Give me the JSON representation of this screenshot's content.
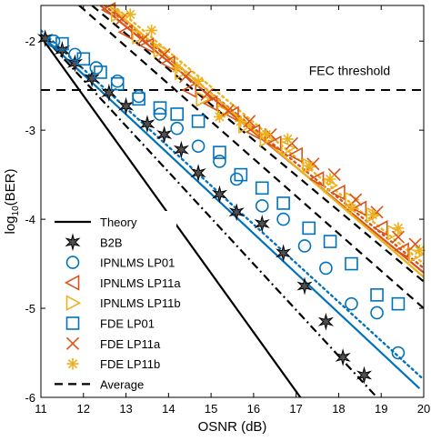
{
  "chart_data": {
    "type": "line",
    "xlabel": "OSNR   (dB)",
    "ylabel": "log",
    "ylabel_sub": "10",
    "ylabel_tail": "(BER)",
    "xlim": [
      11,
      20
    ],
    "ylim": [
      -6,
      -1.6
    ],
    "xticks": [
      11,
      12,
      13,
      14,
      15,
      16,
      17,
      18,
      19,
      20
    ],
    "xtick_labels": [
      "11",
      "12",
      "13",
      "14",
      "15",
      "16",
      "17",
      "18",
      "19",
      "20"
    ],
    "yticks": [
      -6,
      -5,
      -4,
      -3,
      -2
    ],
    "ytick_labels": [
      "-6",
      "-5",
      "-4",
      "-3",
      "-2"
    ],
    "grid": false,
    "legend_position": "bottom-left",
    "annotations": [
      {
        "text": "FEC threshold",
        "x": 17.3,
        "y": -2.38
      }
    ],
    "threshold": {
      "y": -2.55,
      "style": "dashed"
    },
    "lines": [
      {
        "name": "Theory",
        "color": "#000000",
        "dash": "solid",
        "x": [
          11,
          17.1
        ],
        "y": [
          -1.95,
          -6.0
        ]
      },
      {
        "name": "B2B fit",
        "color": "#000000",
        "dash": "dashdot",
        "x": [
          11,
          18.9
        ],
        "y": [
          -1.92,
          -6.0
        ]
      },
      {
        "name": "IPNLMS LP01 fit",
        "color": "#0072BD",
        "dash": "solid",
        "x": [
          11,
          19.9
        ],
        "y": [
          -1.93,
          -5.9
        ]
      },
      {
        "name": "FDE LP01 fit",
        "color": "#0072BD",
        "dash": "dotted",
        "x": [
          11,
          20
        ],
        "y": [
          -1.88,
          -5.8
        ]
      },
      {
        "name": "IPNLMS LP11a fit",
        "color": "#D95319",
        "dash": "solid",
        "x": [
          12.4,
          20
        ],
        "y": [
          -1.6,
          -4.6
        ]
      },
      {
        "name": "FDE LP11a fit",
        "color": "#D95319",
        "dash": "dotted",
        "x": [
          12.5,
          20
        ],
        "y": [
          -1.6,
          -4.55
        ]
      },
      {
        "name": "IPNLMS LP11b fit",
        "color": "#EDB120",
        "dash": "solid",
        "x": [
          12.6,
          20
        ],
        "y": [
          -1.6,
          -4.65
        ]
      },
      {
        "name": "FDE LP11b fit",
        "color": "#EDB120",
        "dash": "dotted",
        "x": [
          12.7,
          20
        ],
        "y": [
          -1.6,
          -4.5
        ]
      },
      {
        "name": "Average",
        "color": "#000000",
        "dash": "dashed",
        "x": [
          11.9,
          20
        ],
        "y": [
          -1.6,
          -5.0
        ]
      },
      {
        "name": "Average upper",
        "color": "#000000",
        "dash": "dashed",
        "x": [
          12.2,
          20
        ],
        "y": [
          -1.6,
          -4.7
        ]
      }
    ],
    "series": [
      {
        "name": "B2B",
        "marker": "star6",
        "color": "#000000",
        "fill": "#505050",
        "x": [
          11.1,
          11.5,
          11.8,
          12.2,
          12.6,
          13.0,
          13.5,
          13.9,
          14.3,
          14.7,
          15.2,
          15.6,
          16.2,
          16.7,
          17.2,
          17.7,
          18.1,
          18.6
        ],
        "y": [
          -1.97,
          -2.1,
          -2.25,
          -2.42,
          -2.58,
          -2.73,
          -2.93,
          -3.05,
          -3.22,
          -3.48,
          -3.72,
          -3.92,
          -4.05,
          -4.38,
          -4.75,
          -5.15,
          -5.55,
          -5.75
        ]
      },
      {
        "name": "IPNLMS LP01",
        "marker": "circle",
        "color": "#0072BD",
        "x": [
          11.3,
          11.8,
          12.3,
          12.8,
          13.3,
          13.8,
          14.2,
          14.7,
          15.2,
          15.6,
          16.2,
          16.7,
          17.2,
          17.7,
          18.3,
          18.9,
          19.4
        ],
        "y": [
          -2.0,
          -2.15,
          -2.3,
          -2.45,
          -2.62,
          -2.82,
          -2.98,
          -3.18,
          -3.35,
          -3.55,
          -3.85,
          -4.0,
          -4.3,
          -4.55,
          -4.95,
          -5.05,
          -5.5
        ]
      },
      {
        "name": "IPNLMS LP11a",
        "marker": "triangle-left",
        "color": "#D95319",
        "x": [
          12.6,
          13.0,
          13.5,
          14.0,
          14.5,
          15.0,
          15.5,
          16.0,
          16.5,
          17.0,
          17.5,
          18.0,
          18.5,
          19.0,
          19.5
        ],
        "y": [
          -1.65,
          -1.9,
          -2.05,
          -2.25,
          -2.55,
          -2.7,
          -2.82,
          -3.02,
          -3.15,
          -3.28,
          -3.55,
          -3.7,
          -3.88,
          -4.1,
          -4.35
        ]
      },
      {
        "name": "IPNLMS LP11b",
        "marker": "triangle-right",
        "color": "#EDB120",
        "x": [
          12.8,
          13.3,
          13.8,
          14.3,
          14.8,
          15.3,
          15.8,
          16.3,
          16.8,
          17.3,
          17.8,
          18.3,
          18.8,
          19.3,
          19.8
        ],
        "y": [
          -1.7,
          -1.95,
          -2.1,
          -2.35,
          -2.65,
          -2.8,
          -2.95,
          -3.1,
          -3.2,
          -3.4,
          -3.62,
          -3.78,
          -3.95,
          -4.15,
          -4.4
        ]
      },
      {
        "name": "FDE LP01",
        "marker": "square",
        "color": "#0072BD",
        "x": [
          11.5,
          12.0,
          12.4,
          12.8,
          13.3,
          13.8,
          14.2,
          14.7,
          15.2,
          15.7,
          16.2,
          16.7,
          17.3,
          17.8,
          18.3,
          18.9,
          19.4
        ],
        "y": [
          -2.03,
          -2.2,
          -2.35,
          -2.48,
          -2.65,
          -2.75,
          -2.82,
          -2.9,
          -3.25,
          -3.5,
          -3.65,
          -3.82,
          -4.1,
          -4.25,
          -4.5,
          -4.85,
          -4.95
        ]
      },
      {
        "name": "FDE LP11a",
        "marker": "x",
        "color": "#D95319",
        "x": [
          12.9,
          13.4,
          13.9,
          14.4,
          14.9,
          15.4,
          15.9,
          16.4,
          16.9,
          17.4,
          17.9,
          18.4,
          18.9,
          19.4,
          19.8
        ],
        "y": [
          -1.75,
          -1.98,
          -2.15,
          -2.4,
          -2.6,
          -2.78,
          -2.9,
          -3.05,
          -3.15,
          -3.38,
          -3.5,
          -3.78,
          -3.92,
          -4.2,
          -4.28
        ]
      },
      {
        "name": "FDE LP11b",
        "marker": "asterisk",
        "color": "#EDB120",
        "x": [
          13.1,
          13.6,
          14.2,
          14.7,
          15.2,
          15.7,
          16.3,
          16.8,
          17.3,
          17.8,
          18.3,
          18.8,
          19.4,
          19.9
        ],
        "y": [
          -1.7,
          -1.88,
          -2.3,
          -2.45,
          -2.85,
          -2.9,
          -3.05,
          -3.1,
          -3.4,
          -3.55,
          -3.88,
          -3.95,
          -4.1,
          -4.35
        ]
      }
    ],
    "legend": [
      {
        "label": "Theory",
        "kind": "line",
        "color": "#000000",
        "dash": "solid"
      },
      {
        "label": "B2B",
        "kind": "marker",
        "marker": "star6",
        "color": "#000000",
        "fill": "#505050"
      },
      {
        "label": "IPNLMS LP01",
        "kind": "marker",
        "marker": "circle",
        "color": "#0072BD"
      },
      {
        "label": "IPNLMS LP11a",
        "kind": "marker",
        "marker": "triangle-left",
        "color": "#D95319"
      },
      {
        "label": "IPNLMS LP11b",
        "kind": "marker",
        "marker": "triangle-right",
        "color": "#EDB120"
      },
      {
        "label": "FDE LP01",
        "kind": "marker",
        "marker": "square",
        "color": "#0072BD"
      },
      {
        "label": "FDE LP11a",
        "kind": "marker",
        "marker": "x",
        "color": "#D95319"
      },
      {
        "label": "FDE LP11b",
        "kind": "marker",
        "marker": "asterisk",
        "color": "#EDB120"
      },
      {
        "label": "Average",
        "kind": "line",
        "color": "#000000",
        "dash": "dashed"
      }
    ]
  }
}
